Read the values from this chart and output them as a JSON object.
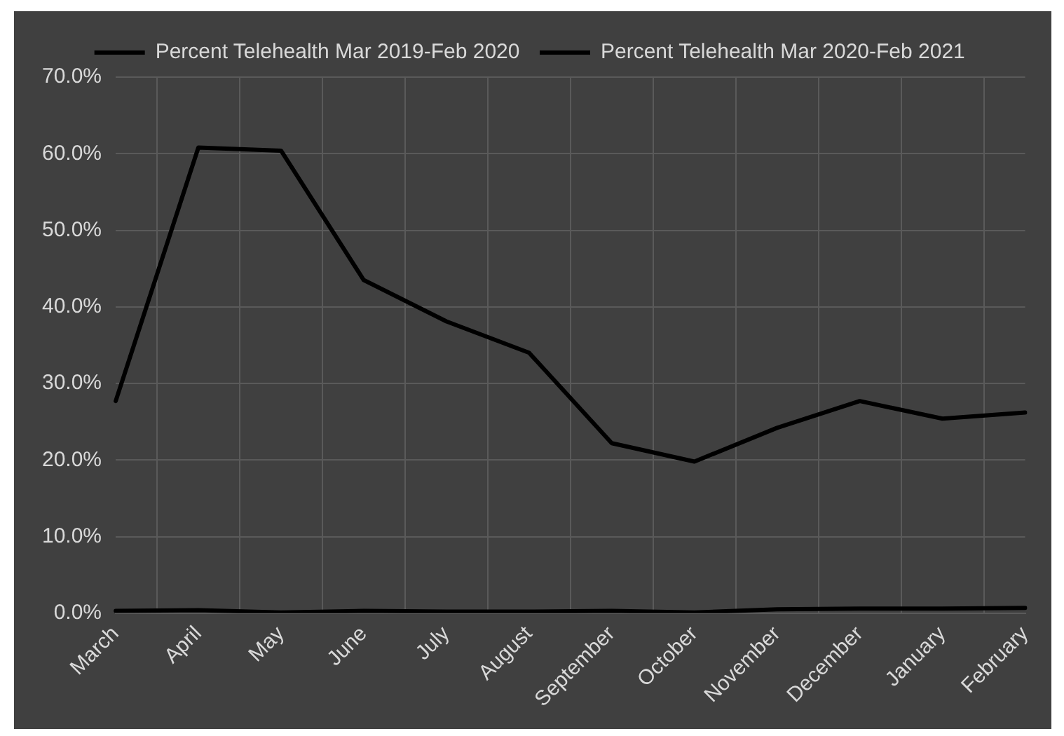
{
  "chart_data": {
    "type": "line",
    "categories": [
      "March",
      "April",
      "May",
      "June",
      "July",
      "August",
      "September",
      "October",
      "November",
      "December",
      "January",
      "February"
    ],
    "series": [
      {
        "name": "Percent Telehealth Mar 2019-Feb 2020",
        "color": "#000000",
        "values": [
          0.3,
          0.4,
          0.1,
          0.3,
          0.2,
          0.2,
          0.3,
          0.1,
          0.5,
          0.6,
          0.6,
          0.7
        ]
      },
      {
        "name": "Percent Telehealth Mar 2020-Feb 2021",
        "color": "#000000",
        "values": [
          27.7,
          60.8,
          60.4,
          43.5,
          38.1,
          34.0,
          22.2,
          19.8,
          24.2,
          27.7,
          25.4,
          26.2
        ]
      }
    ],
    "ylim": [
      0,
      70
    ],
    "yticks": [
      {
        "value": 0,
        "label": "0.0%"
      },
      {
        "value": 10,
        "label": "10.0%"
      },
      {
        "value": 20,
        "label": "20.0%"
      },
      {
        "value": 30,
        "label": "30.0%"
      },
      {
        "value": 40,
        "label": "40.0%"
      },
      {
        "value": 50,
        "label": "50.0%"
      },
      {
        "value": 60,
        "label": "60.0%"
      },
      {
        "value": 70,
        "label": "70.0%"
      }
    ],
    "grid": true,
    "legend": "top",
    "marker": "none",
    "line_style": "solid"
  }
}
